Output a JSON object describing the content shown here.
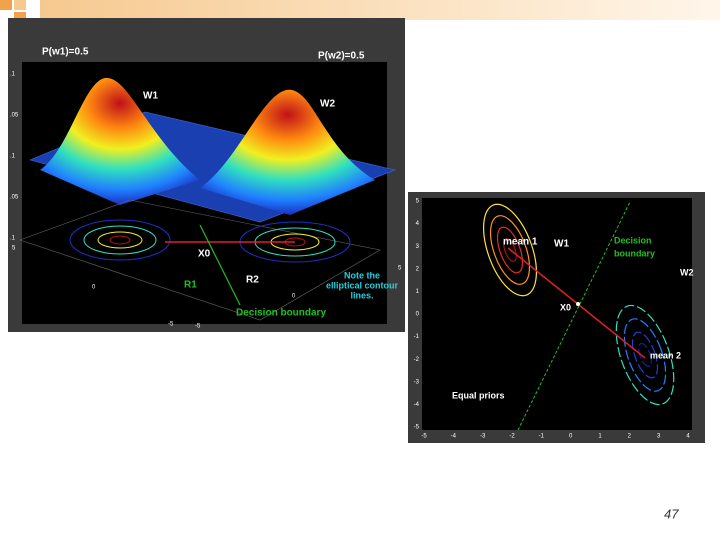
{
  "slide": {
    "page_number": "47",
    "left_figure": {
      "prior_1": "P(w1)=0.5",
      "prior_2": "P(w2)=0.5",
      "class_1": "W1",
      "class_2": "W2",
      "x0": "X0",
      "region_1": "R1",
      "region_2": "R2",
      "note": [
        "Note the",
        "elliptical contour",
        "lines."
      ],
      "boundary": "Decision boundary",
      "z_ticks": [
        ".1",
        ".05",
        ".1",
        ".05",
        ".1"
      ],
      "base_ticks": [
        "5",
        "0",
        "-5",
        "-5",
        "0",
        "5"
      ]
    },
    "right_figure": {
      "mean_1": "mean 1",
      "class_1": "W1",
      "boundary": [
        "Decision",
        "boundary"
      ],
      "class_2": "W2",
      "x0": "X0",
      "mean_2": "mean 2",
      "priors": "Equal priors",
      "x_ticks": [
        "-5",
        "-4",
        "-3",
        "-2",
        "-1",
        "0",
        "1",
        "2",
        "3",
        "4"
      ],
      "y_ticks": [
        "5",
        "4",
        "3",
        "2",
        "1",
        "0",
        "-1",
        "-2",
        "-3",
        "-4",
        "-5"
      ]
    }
  }
}
